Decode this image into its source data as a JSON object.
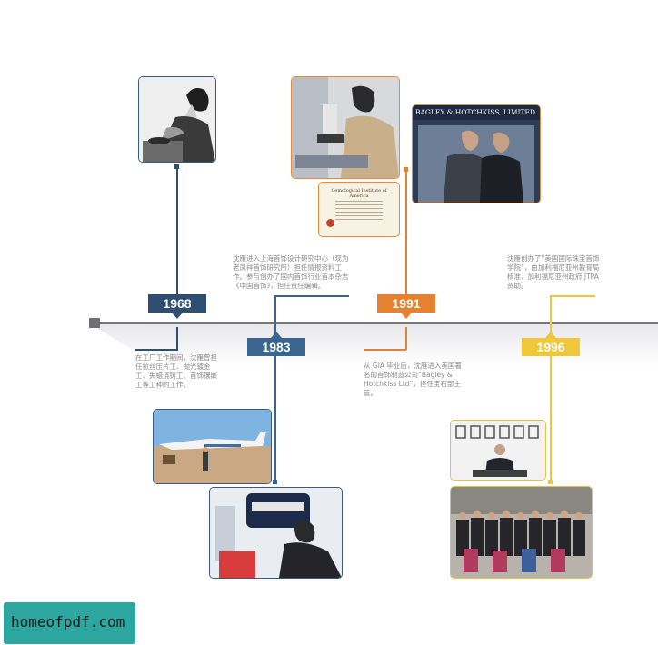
{
  "timeline": {
    "items": [
      {
        "year": "1968",
        "text": "在工厂工作期间，沈雁曾担任拉丝压片工、抛光镀金工、失蜡浇铸工、首饰镶嵌工等工种的工作。",
        "color": "#2e4e72"
      },
      {
        "year": "1983",
        "text": "沈雁进入上海首饰设计研究中心（现为老凤祥首饰研究所）担任情报资料工作。参与创办了国内首饰行业首本杂志《中国首饰》，担任责任编辑。",
        "color": "#3a6591"
      },
      {
        "year": "1991",
        "text": "从 GIA 毕业后，沈雁进入美国著名的首饰制造公司“Bagley & Hotchkiss Ltd”，担任宝石部主管。",
        "color": "#e5822f"
      },
      {
        "year": "1996",
        "text": "沈雁创办了“美国国际珠宝首饰学院”，由加利福尼亚州教育局核准、加利福尼亚州政府 JTPA 资助。",
        "color": "#f0c63a"
      }
    ]
  },
  "photos": {
    "sign_text": "BAGLEY & HOTCHKISS, LIMITED",
    "certificate_title": "Gemological Institute of America"
  },
  "watermark": {
    "text": "homeofpdf.com"
  }
}
